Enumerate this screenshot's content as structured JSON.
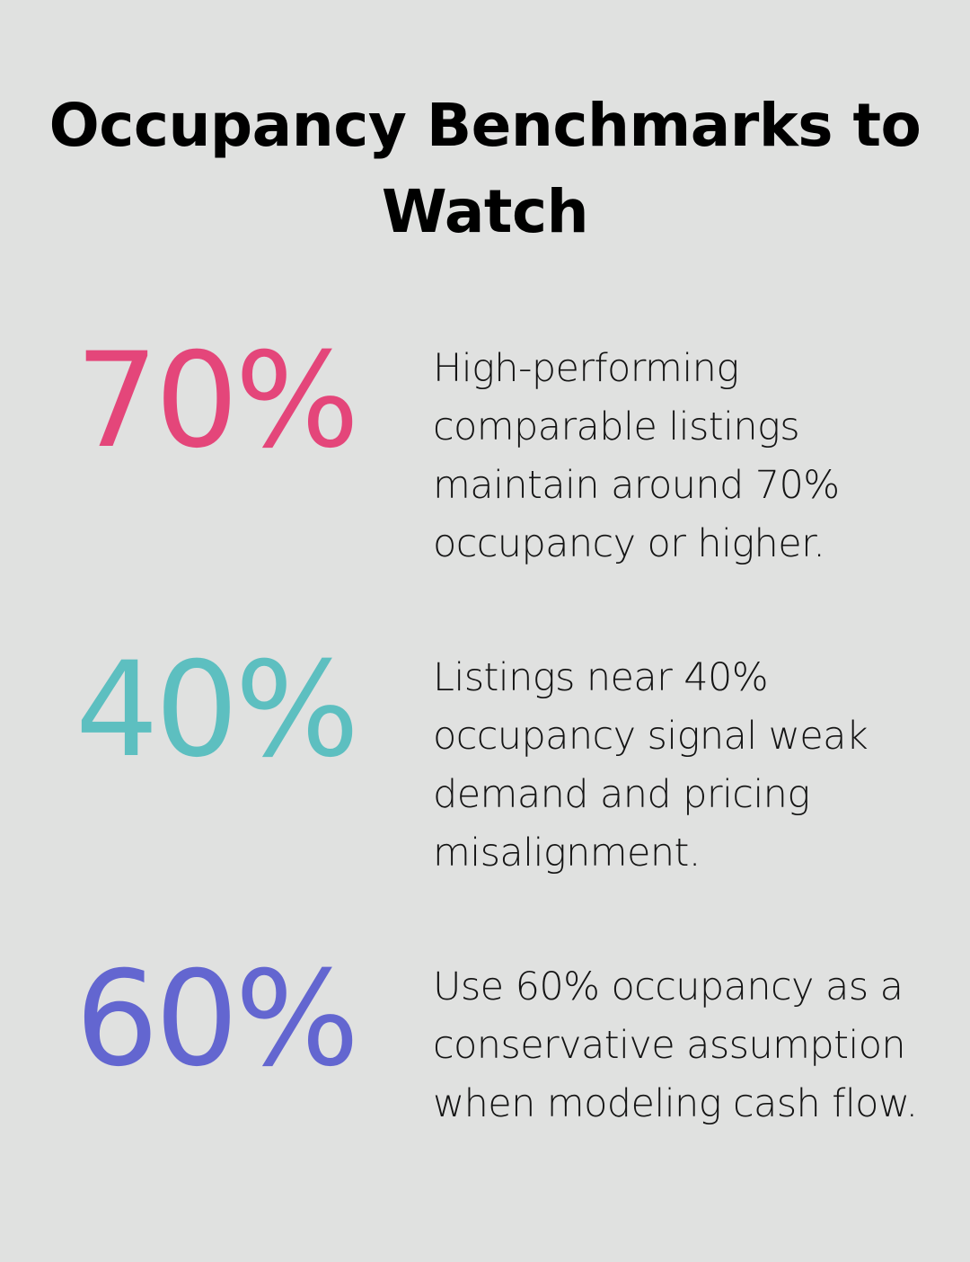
{
  "title": "Occupancy Benchmarks to Watch",
  "stats": [
    {
      "value": "70%",
      "color": "#e4467a",
      "description": "High-performing comparable listings maintain around 70% occupancy or higher."
    },
    {
      "value": "40%",
      "color": "#5dbfc0",
      "description": "Listings near 40% occupancy signal weak demand and pricing misalignment."
    },
    {
      "value": "60%",
      "color": "#6366d0",
      "description": "Use 60% occupancy as a conservative assumption when modeling cash flow."
    }
  ]
}
